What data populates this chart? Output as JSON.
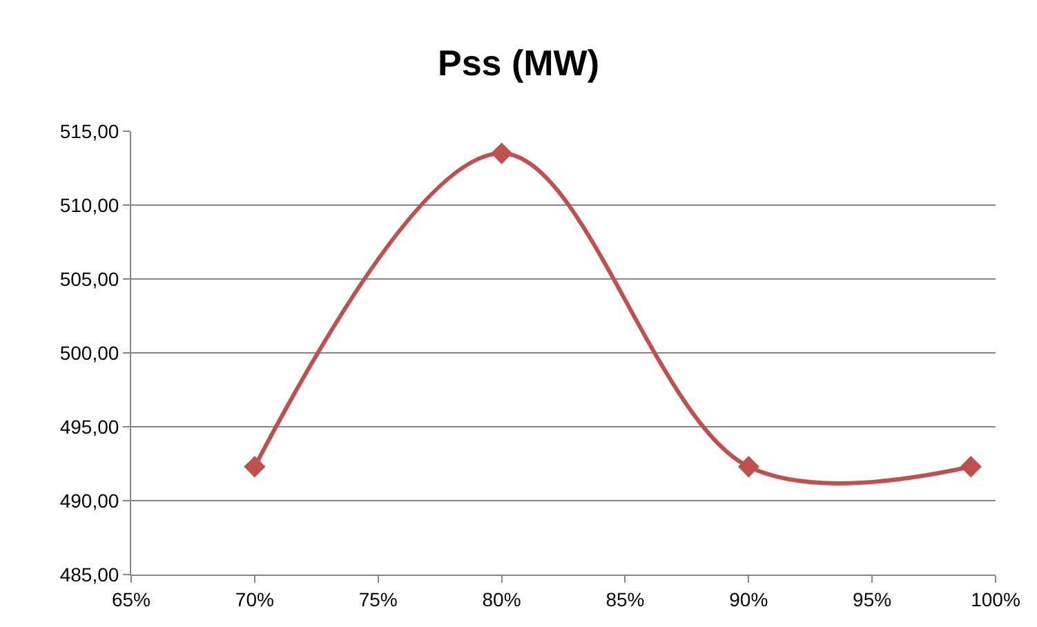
{
  "chart_data": {
    "type": "line",
    "title": "Pss (MW)",
    "x": [
      70,
      80,
      90,
      99
    ],
    "series": [
      {
        "color": "#c0504d",
        "values": [
          492.3,
          513.5,
          492.3,
          492.3
        ]
      }
    ],
    "xlim": [
      65,
      100
    ],
    "xticks": [
      {
        "value": 65,
        "label": "65%"
      },
      {
        "value": 70,
        "label": "70%"
      },
      {
        "value": 75,
        "label": "75%"
      },
      {
        "value": 80,
        "label": "80%"
      },
      {
        "value": 85,
        "label": "85%"
      },
      {
        "value": 90,
        "label": "90%"
      },
      {
        "value": 95,
        "label": "95%"
      },
      {
        "value": 100,
        "label": "100%"
      }
    ],
    "ylim": [
      485,
      515
    ],
    "yticks": [
      {
        "value": 485,
        "label": "485,00"
      },
      {
        "value": 490,
        "label": "490,00"
      },
      {
        "value": 495,
        "label": "495,00"
      },
      {
        "value": 500,
        "label": "500,00"
      },
      {
        "value": 505,
        "label": "505,00"
      },
      {
        "value": 510,
        "label": "510,00"
      },
      {
        "value": 515,
        "label": "515,00"
      }
    ],
    "grid": "y",
    "marker": "diamond",
    "line_style": "solid"
  }
}
